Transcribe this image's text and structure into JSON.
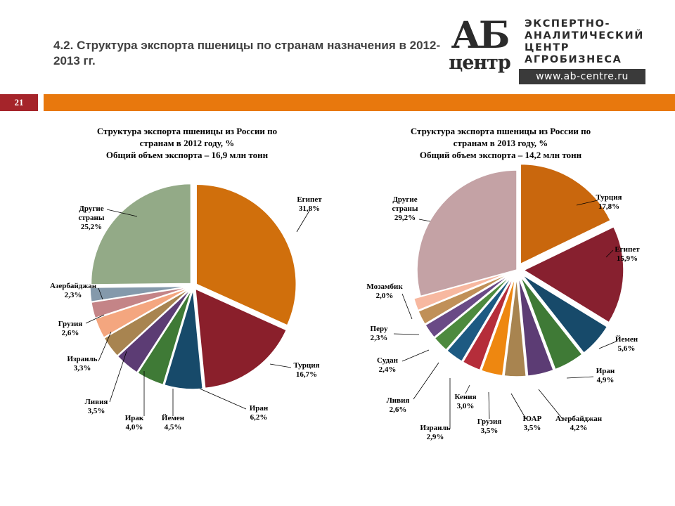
{
  "slide": {
    "title": "4.2. Структура экспорта пшеницы по странам назначения в 2012-2013 гг.",
    "number": "21"
  },
  "logo": {
    "mark_top": "АБ",
    "mark_bottom": "центр",
    "lines": [
      "ЭКСПЕРТНО-",
      "АНАЛИТИЧЕСКИЙ",
      "ЦЕНТР",
      "АГРОБИЗНЕСА"
    ],
    "url": "www.ab-centre.ru"
  },
  "colors": {
    "accent_orange": "#e8780d",
    "slide_number_bg": "#a5242a"
  },
  "chart_data": [
    {
      "type": "pie",
      "title_lines": [
        "Структура экспорта пшеницы из России по",
        "странам в 2012 году, %",
        "Общий объем экспорта – 16,9 млн тонн"
      ],
      "slices": [
        {
          "label": "Египет",
          "value": 31.8,
          "value_label": "31,8%",
          "color": "#d06f0c"
        },
        {
          "label": "Турция",
          "value": 16.7,
          "value_label": "16,7%",
          "color": "#8a1f2b"
        },
        {
          "label": "Иран",
          "value": 6.2,
          "value_label": "6,2%",
          "color": "#174a6a"
        },
        {
          "label": "Йемен",
          "value": 4.5,
          "value_label": "4,5%",
          "color": "#3f7a36"
        },
        {
          "label": "Ирак",
          "value": 4.0,
          "value_label": "4,0%",
          "color": "#5c3c74"
        },
        {
          "label": "Ливия",
          "value": 3.5,
          "value_label": "3,5%",
          "color": "#a88450"
        },
        {
          "label": "Израиль",
          "value": 3.3,
          "value_label": "3,3%",
          "color": "#f4a67f"
        },
        {
          "label": "Грузия",
          "value": 2.6,
          "value_label": "2,6%",
          "color": "#c48487"
        },
        {
          "label": "Азербайджан",
          "value": 2.3,
          "value_label": "2,3%",
          "color": "#8499ab"
        },
        {
          "label": "Другие страны",
          "value": 25.2,
          "value_label": "25,2%",
          "color": "#93aa87"
        }
      ]
    },
    {
      "type": "pie",
      "title_lines": [
        "Структура экспорта пшеницы из России по",
        "странам в 2013 году, %",
        "Общий объем экспорта – 14,2 млн тонн"
      ],
      "slices": [
        {
          "label": "Турция",
          "value": 17.8,
          "value_label": "17,8%",
          "color": "#c9670d"
        },
        {
          "label": "Египет",
          "value": 15.9,
          "value_label": "15,9%",
          "color": "#87202f"
        },
        {
          "label": "Йемен",
          "value": 5.6,
          "value_label": "5,6%",
          "color": "#174a6a"
        },
        {
          "label": "Иран",
          "value": 4.9,
          "value_label": "4,9%",
          "color": "#3f7a36"
        },
        {
          "label": "Азербайджан",
          "value": 4.2,
          "value_label": "4,2%",
          "color": "#5c3c74"
        },
        {
          "label": "ЮАР",
          "value": 3.5,
          "value_label": "3,5%",
          "color": "#a88450"
        },
        {
          "label": "Грузия",
          "value": 3.5,
          "value_label": "3,5%",
          "color": "#ee8710"
        },
        {
          "label": "Кения",
          "value": 3.0,
          "value_label": "3,0%",
          "color": "#b52d3a"
        },
        {
          "label": "Израиль",
          "value": 2.9,
          "value_label": "2,9%",
          "color": "#1d5a82"
        },
        {
          "label": "Ливия",
          "value": 2.6,
          "value_label": "2,6%",
          "color": "#4d8a3e"
        },
        {
          "label": "Судан",
          "value": 2.4,
          "value_label": "2,4%",
          "color": "#6a4a86"
        },
        {
          "label": "Перу",
          "value": 2.3,
          "value_label": "2,3%",
          "color": "#c09058"
        },
        {
          "label": "Мозамбик",
          "value": 2.0,
          "value_label": "2,0%",
          "color": "#f7b8a0"
        },
        {
          "label": "Другие страны",
          "value": 29.2,
          "value_label": "29,2%",
          "color": "#c4a2a5"
        }
      ]
    }
  ]
}
